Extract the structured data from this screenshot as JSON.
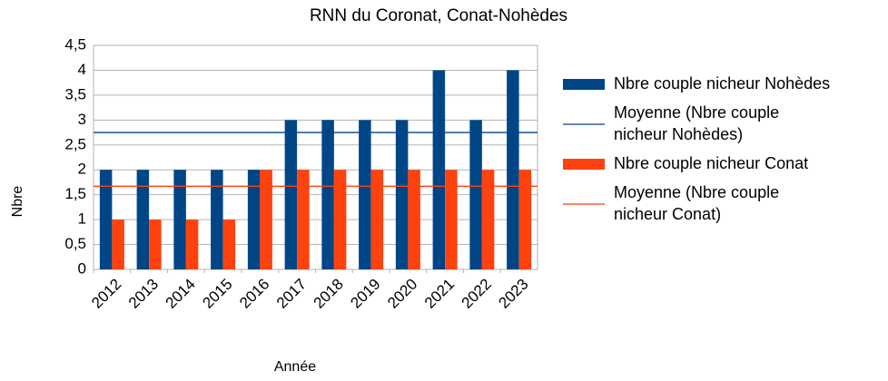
{
  "chart_data": {
    "type": "bar",
    "title": "RNN du Coronat, Conat-Nohèdes",
    "x_label": "Année",
    "y_label": "Nbre",
    "categories": [
      "2012",
      "2013",
      "2014",
      "2015",
      "2016",
      "2017",
      "2018",
      "2019",
      "2020",
      "2021",
      "2022",
      "2023"
    ],
    "series": [
      {
        "name": "Nbre couple nicheur Nohèdes",
        "type": "bar",
        "color": "#004586",
        "values": [
          2,
          2,
          2,
          2,
          2,
          3,
          3,
          3,
          3,
          4,
          3,
          4
        ]
      },
      {
        "name": "Moyenne (Nbre couple nicheur Nohèdes)",
        "type": "mean",
        "color": "#004586",
        "value": 2.75
      },
      {
        "name": "Nbre couple nicheur Conat",
        "type": "bar",
        "color": "#ff420e",
        "values": [
          1,
          1,
          1,
          1,
          2,
          2,
          2,
          2,
          2,
          2,
          2,
          2
        ]
      },
      {
        "name": "Moyenne (Nbre couple nicheur Conat)",
        "type": "mean",
        "color": "#ff420e",
        "value": 1.67
      }
    ],
    "ylim": [
      0,
      4.5
    ],
    "yticks": [
      0,
      {
        "value": 0.5,
        "label": "0,5"
      },
      1,
      {
        "value": 1.5,
        "label": "1,5"
      },
      2,
      {
        "value": 2.5,
        "label": "2,5"
      },
      3,
      {
        "value": 3.5,
        "label": "3,5"
      },
      4,
      {
        "value": 4.5,
        "label": "4,5"
      }
    ],
    "grid": true,
    "legend": "right"
  }
}
